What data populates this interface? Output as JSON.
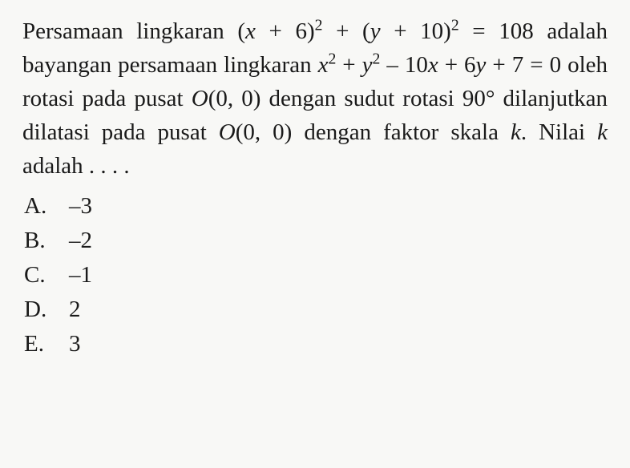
{
  "question": {
    "line1_pre": "Persamaan lingkaran ",
    "eq1_a": "(",
    "eq1_x": "x",
    "eq1_b": " + 6)",
    "eq1_sup1": "2",
    "eq1_c": " + (",
    "eq1_y": "y",
    "eq1_d": " + 10)",
    "eq1_sup2": "2",
    "eq1_e": " = 108",
    "line2": "adalah bayangan persamaan lingkaran ",
    "eq2_x": "x",
    "eq2_sup1": "2",
    "eq2_a": " + ",
    "eq2_y": "y",
    "eq2_sup2": "2",
    "eq2_b": " – 10",
    "eq2_x2": "x",
    "eq2_c": " + 6",
    "eq2_y2": "y",
    "eq2_d": " + 7 = 0",
    "line3a": " oleh rotasi pada pusat ",
    "O1": "O",
    "line3b": "(0, 0) dengan sudut rotasi 90° dilanjutkan dilatasi pada pusat ",
    "O2": "O",
    "line3c": "(0, 0) dengan faktor skala ",
    "k1": "k",
    "line3d": ". Nilai ",
    "k2": "k",
    "line3e": " adalah . . . ."
  },
  "options": {
    "a_label": "A.",
    "a_value": "–3",
    "b_label": "B.",
    "b_value": "–2",
    "c_label": "C.",
    "c_value": "–1",
    "d_label": "D.",
    "d_value": "2",
    "e_label": "E.",
    "e_value": "3"
  },
  "colors": {
    "background": "#f8f8f6",
    "text": "#1a1a1a"
  },
  "typography": {
    "font_family": "Times New Roman",
    "body_fontsize": 29,
    "sup_scale": 0.68,
    "line_height": 1.45
  }
}
